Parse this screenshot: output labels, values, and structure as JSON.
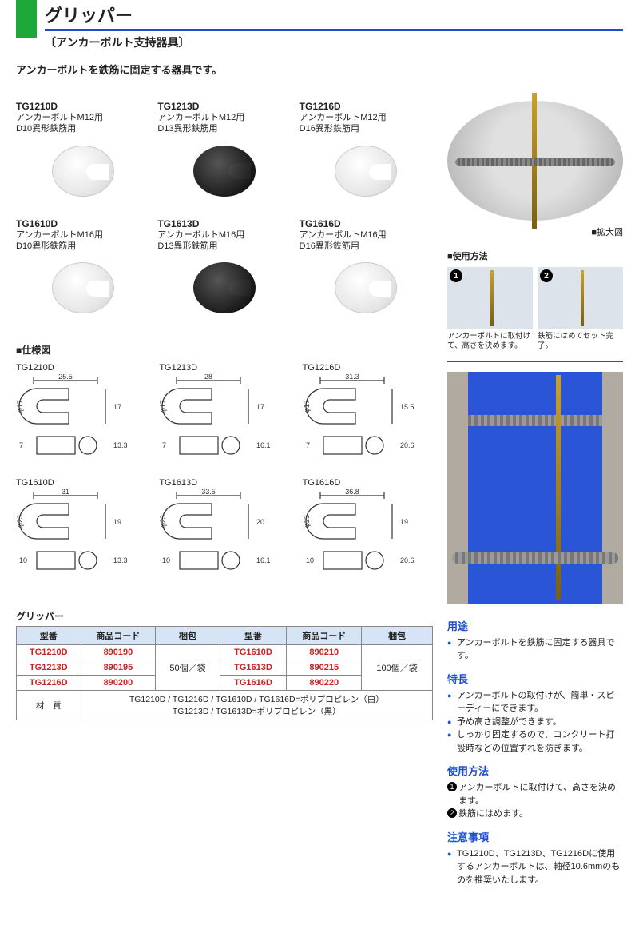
{
  "header": {
    "title": "グリッパー",
    "subtitle": "〔アンカーボルト支持器具〕",
    "intro": "アンカーボルトを鉄筋に固定する器具です。",
    "accent_green": "#1ea838",
    "accent_blue": "#1a4fd0"
  },
  "products": [
    {
      "code": "TG1210D",
      "line1": "アンカーボルトM12用",
      "line2": "D10異形鉄筋用",
      "color": "white"
    },
    {
      "code": "TG1213D",
      "line1": "アンカーボルトM12用",
      "line2": "D13異形鉄筋用",
      "color": "black"
    },
    {
      "code": "TG1216D",
      "line1": "アンカーボルトM12用",
      "line2": "D16異形鉄筋用",
      "color": "white"
    },
    {
      "code": "TG1610D",
      "line1": "アンカーボルトM16用",
      "line2": "D10異形鉄筋用",
      "color": "white"
    },
    {
      "code": "TG1613D",
      "line1": "アンカーボルトM16用",
      "line2": "D13異形鉄筋用",
      "color": "black"
    },
    {
      "code": "TG1616D",
      "line1": "アンカーボルトM16用",
      "line2": "D16異形鉄筋用",
      "color": "white"
    }
  ],
  "spec_drawings_title": "■仕様図",
  "specs": [
    {
      "code": "TG1210D",
      "w": "25.5",
      "h": "17",
      "dia": "13.3",
      "side": "7",
      "outer": "φ17"
    },
    {
      "code": "TG1213D",
      "w": "28",
      "h": "17",
      "dia": "16.1",
      "side": "7",
      "outer": "φ17"
    },
    {
      "code": "TG1216D",
      "w": "31.3",
      "h": "15.5",
      "dia": "20.6",
      "side": "7",
      "outer": "φ17"
    },
    {
      "code": "TG1610D",
      "w": "31",
      "h": "19",
      "dia": "13.3",
      "side": "10",
      "outer": "φ23"
    },
    {
      "code": "TG1613D",
      "w": "33.5",
      "h": "20",
      "dia": "16.1",
      "side": "10",
      "outer": "φ23"
    },
    {
      "code": "TG1616D",
      "w": "36.8",
      "h": "19",
      "dia": "20.6",
      "side": "10",
      "outer": "φ23"
    }
  ],
  "table": {
    "title": "グリッパー",
    "headers": [
      "型番",
      "商品コード",
      "梱包",
      "型番",
      "商品コード",
      "梱包"
    ],
    "rows": [
      [
        "TG1210D",
        "890190",
        "50個／袋",
        "TG1610D",
        "890210",
        "100個／袋"
      ],
      [
        "TG1213D",
        "890195",
        "",
        "TG1613D",
        "890215",
        ""
      ],
      [
        "TG1216D",
        "890200",
        "",
        "TG1616D",
        "890220",
        ""
      ]
    ],
    "material_label": "材　質",
    "material_line1": "TG1210D / TG1216D / TG1610D / TG1616D=ポリプロピレン（白）",
    "material_line2": "TG1213D / TG1613D=ポリプロピレン（黒）",
    "code_color": "#d02020",
    "header_bg": "#d6e4f5"
  },
  "right": {
    "zoom_label": "■拡大図",
    "usage_title": "■使用方法",
    "usage_steps": [
      {
        "num": "1",
        "caption": "アンカーボルトに取付けて、高さを決めます。"
      },
      {
        "num": "2",
        "caption": "鉄筋にはめてセット完了。"
      }
    ],
    "sections": {
      "purpose": {
        "head": "用途",
        "items": [
          "アンカーボルトを鉄筋に固定する器具です。"
        ]
      },
      "features": {
        "head": "特長",
        "items": [
          "アンカーボルトの取付けが、簡単・スピーディーにできます。",
          "予め高さ調整ができます。",
          "しっかり固定するので、コンクリート打設時などの位置ずれを防ぎます。"
        ]
      },
      "howto": {
        "head": "使用方法",
        "items": [
          "アンカーボルトに取付けて、高さを決めます。",
          "鉄筋にはめます。"
        ]
      },
      "caution": {
        "head": "注意事項",
        "items": [
          "TG1210D、TG1213D、TG1216Dに使用するアンカーボルトは、軸径10.6mmのものを推奨いたします。"
        ]
      }
    }
  }
}
